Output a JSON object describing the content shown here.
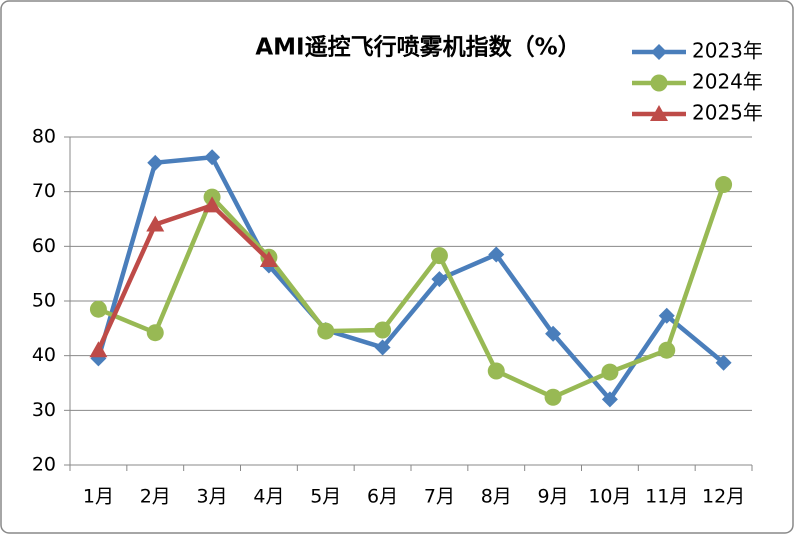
{
  "chart_data": {
    "type": "line",
    "title": "AMI遥控飞行喷雾机指数（%）",
    "categories": [
      "1月",
      "2月",
      "3月",
      "4月",
      "5月",
      "6月",
      "7月",
      "8月",
      "9月",
      "10月",
      "11月",
      "12月"
    ],
    "series": [
      {
        "name": "2023年",
        "color": "#4a7ebb",
        "marker": "diamond",
        "values": [
          39.5,
          75.3,
          76.3,
          56.5,
          44.7,
          41.5,
          54,
          58.5,
          44,
          32,
          47.3,
          38.7
        ]
      },
      {
        "name": "2024年",
        "color": "#98b954",
        "marker": "circle",
        "values": [
          48.5,
          44.2,
          69,
          58,
          44.5,
          44.7,
          58.3,
          37.2,
          32.4,
          37,
          41,
          71.3
        ]
      },
      {
        "name": "2025年",
        "color": "#be4b48",
        "marker": "triangle",
        "values": [
          41,
          64,
          67.5,
          57.5,
          null,
          null,
          null,
          null,
          null,
          null,
          null,
          null
        ]
      }
    ],
    "ylim": [
      20,
      80
    ],
    "yticks": [
      20,
      30,
      40,
      50,
      60,
      70,
      80
    ],
    "grid": true,
    "legend": "top-right"
  }
}
